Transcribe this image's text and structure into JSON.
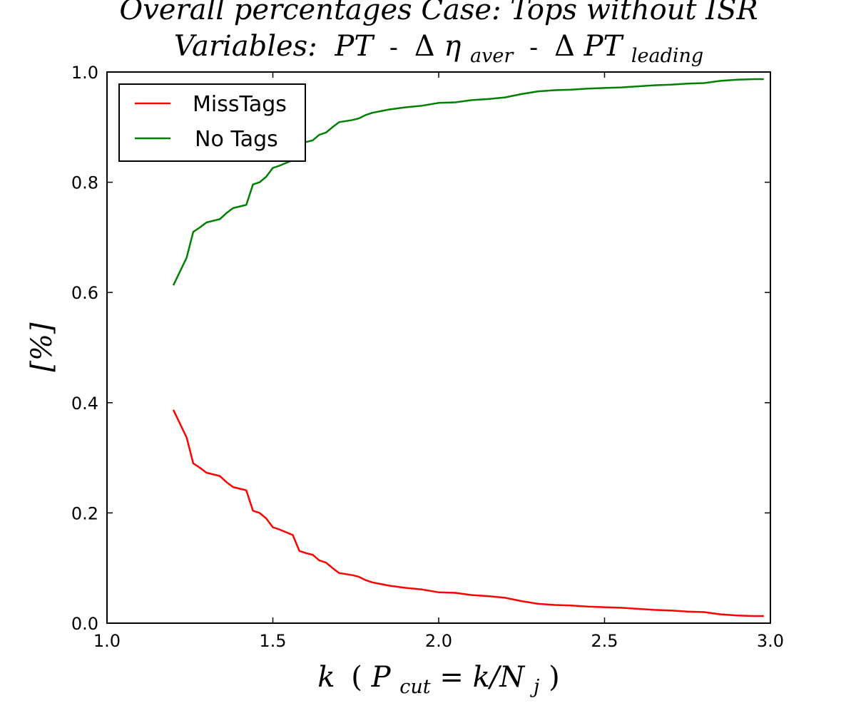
{
  "chart_data": {
    "type": "line",
    "title_line1": "Overall percentages Case: Tops without ISR",
    "title_line2": "Variables: PT - Δη_aver - ΔPT_leading",
    "title_parts": {
      "line1": "Overall percentages Case: Tops without ISR",
      "variables": "Variables:",
      "pt": "PT",
      "dash": "-",
      "delta": "Δ",
      "eta": "η",
      "aver": "aver",
      "leading": "leading"
    },
    "xlabel": "k (P_cut = k/N_j)",
    "xlabel_parts": {
      "k": "k",
      "open": "(",
      "P": "P",
      "cut": "cut",
      "eq": "=",
      "kslash": "k/N",
      "j": "j",
      "close": ")"
    },
    "ylabel": "[%]",
    "xlim": [
      1.0,
      3.0
    ],
    "ylim": [
      0.0,
      1.0
    ],
    "xticks": [
      "1.0",
      "1.5",
      "2.0",
      "2.5",
      "3.0"
    ],
    "yticks": [
      "0.0",
      "0.2",
      "0.4",
      "0.6",
      "0.8",
      "1.0"
    ],
    "grid": false,
    "legend_position": "upper-left",
    "series": [
      {
        "name": "MissTags",
        "color": "#ff0000",
        "x": [
          1.2,
          1.22,
          1.24,
          1.26,
          1.28,
          1.3,
          1.32,
          1.34,
          1.36,
          1.38,
          1.4,
          1.42,
          1.44,
          1.46,
          1.48,
          1.5,
          1.52,
          1.54,
          1.56,
          1.58,
          1.6,
          1.62,
          1.64,
          1.66,
          1.68,
          1.7,
          1.72,
          1.74,
          1.76,
          1.78,
          1.8,
          1.85,
          1.9,
          1.95,
          2.0,
          2.05,
          2.1,
          2.15,
          2.2,
          2.25,
          2.3,
          2.35,
          2.4,
          2.45,
          2.5,
          2.55,
          2.6,
          2.65,
          2.7,
          2.75,
          2.8,
          2.85,
          2.9,
          2.95,
          2.98
        ],
        "y": [
          0.387,
          0.362,
          0.337,
          0.29,
          0.282,
          0.273,
          0.27,
          0.267,
          0.256,
          0.247,
          0.244,
          0.241,
          0.204,
          0.2,
          0.19,
          0.174,
          0.17,
          0.165,
          0.16,
          0.131,
          0.127,
          0.124,
          0.114,
          0.11,
          0.1,
          0.091,
          0.089,
          0.087,
          0.084,
          0.078,
          0.074,
          0.068,
          0.064,
          0.061,
          0.056,
          0.055,
          0.051,
          0.049,
          0.046,
          0.04,
          0.035,
          0.033,
          0.032,
          0.03,
          0.029,
          0.028,
          0.026,
          0.024,
          0.023,
          0.021,
          0.02,
          0.016,
          0.014,
          0.013,
          0.013
        ]
      },
      {
        "name": "No Tags",
        "color": "#008000",
        "x": [
          1.2,
          1.22,
          1.24,
          1.26,
          1.28,
          1.3,
          1.32,
          1.34,
          1.36,
          1.38,
          1.4,
          1.42,
          1.44,
          1.46,
          1.48,
          1.5,
          1.52,
          1.54,
          1.56,
          1.58,
          1.6,
          1.62,
          1.64,
          1.66,
          1.68,
          1.7,
          1.72,
          1.74,
          1.76,
          1.78,
          1.8,
          1.85,
          1.9,
          1.95,
          2.0,
          2.05,
          2.1,
          2.15,
          2.2,
          2.25,
          2.3,
          2.35,
          2.4,
          2.45,
          2.5,
          2.55,
          2.6,
          2.65,
          2.7,
          2.75,
          2.8,
          2.85,
          2.9,
          2.95,
          2.98
        ],
        "y": [
          0.613,
          0.638,
          0.663,
          0.71,
          0.718,
          0.727,
          0.73,
          0.733,
          0.744,
          0.753,
          0.756,
          0.759,
          0.796,
          0.8,
          0.81,
          0.826,
          0.83,
          0.835,
          0.84,
          0.869,
          0.873,
          0.876,
          0.886,
          0.89,
          0.9,
          0.909,
          0.911,
          0.913,
          0.916,
          0.922,
          0.926,
          0.932,
          0.936,
          0.939,
          0.944,
          0.945,
          0.949,
          0.951,
          0.954,
          0.96,
          0.965,
          0.967,
          0.968,
          0.97,
          0.971,
          0.972,
          0.974,
          0.976,
          0.977,
          0.979,
          0.98,
          0.984,
          0.986,
          0.987,
          0.987
        ]
      }
    ]
  }
}
